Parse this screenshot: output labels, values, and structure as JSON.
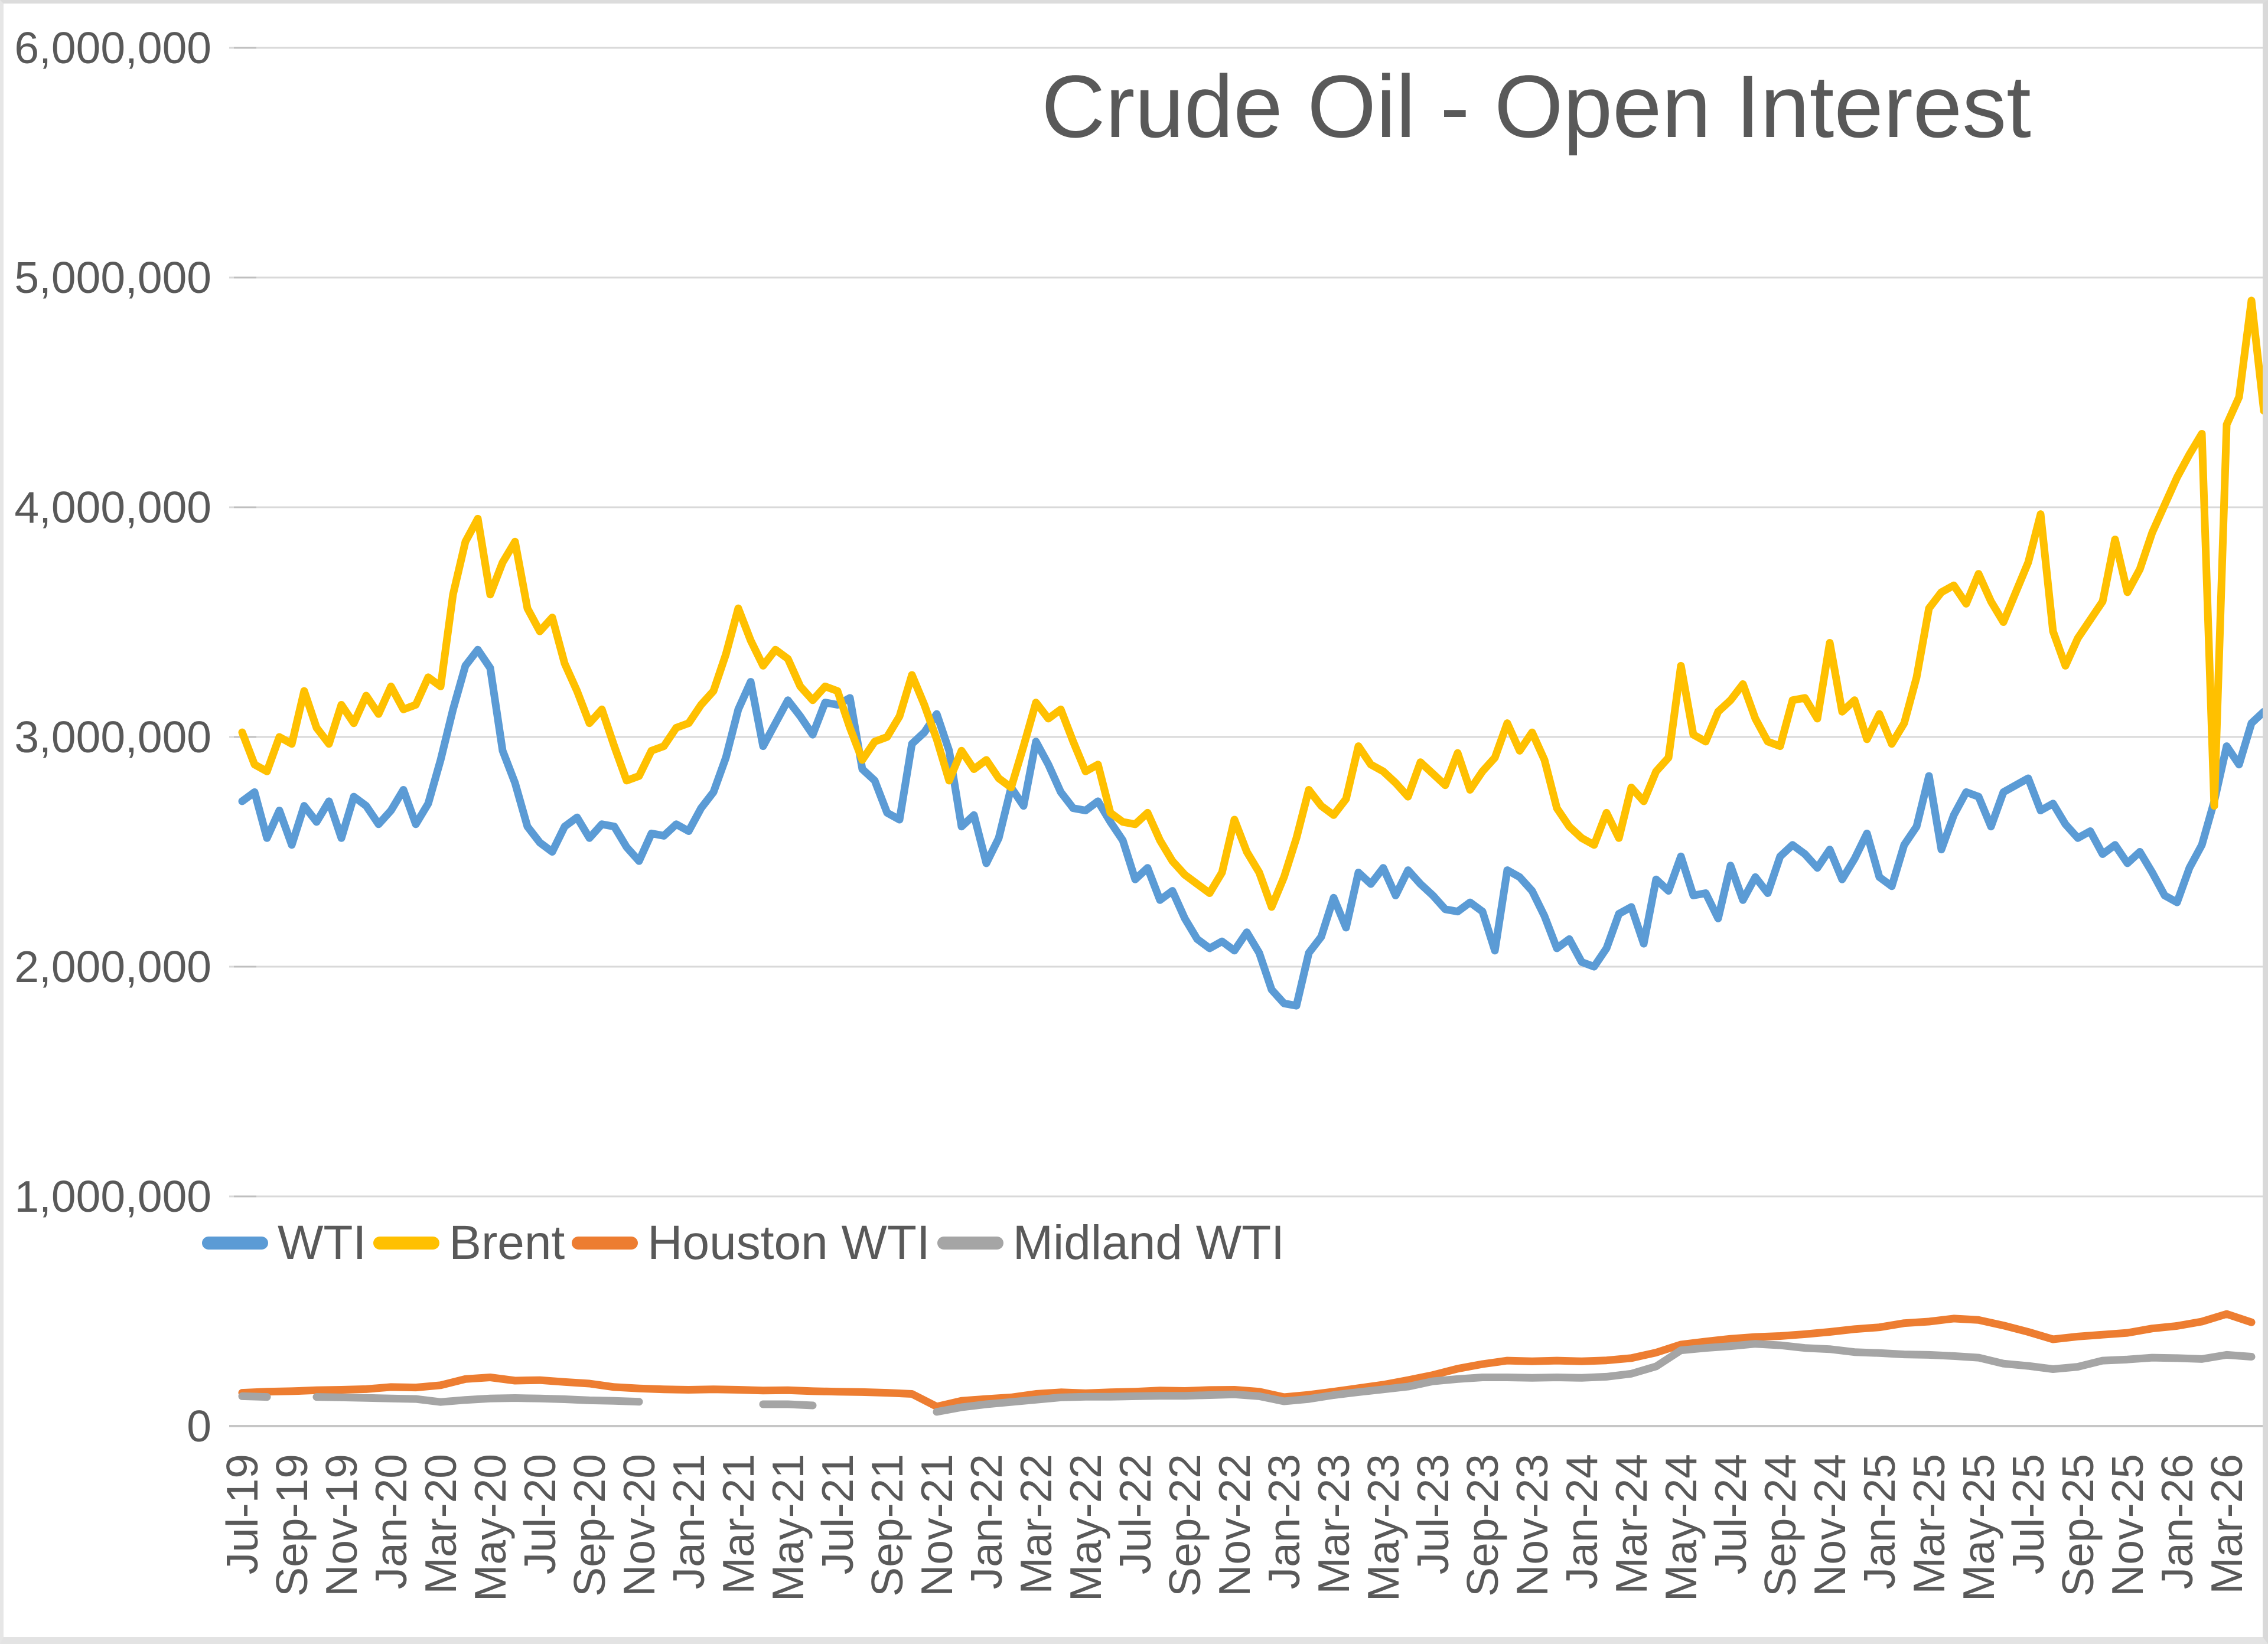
{
  "title": "Crude Oil - Open Interest",
  "colors": {
    "title_text": "#595959",
    "axis_text": "#595959",
    "gridline": "#D9D9D9",
    "axis_line": "#C6C6C6",
    "tick_mark": "#BFBFBF",
    "wti": "#5B9BD5",
    "brent": "#FFC000",
    "houston_wti": "#ED7D31",
    "midland_wti": "#A5A5A5"
  },
  "chart_data": {
    "type": "line",
    "title": "Crude Oil - Open Interest",
    "xlabel": "",
    "ylabel": "",
    "grid": true,
    "y_axis": {
      "min": 0,
      "max": 6000000,
      "tick_interval": 1000000,
      "tick_labels": [
        "6,000,000",
        "5,000,000",
        "4,000,000",
        "3,000,000",
        "2,000,000",
        "1,000,000",
        "0"
      ],
      "tick_values": [
        6000000,
        5000000,
        4000000,
        3000000,
        2000000,
        1000000,
        0
      ]
    },
    "x_axis": {
      "unit": "month",
      "start": "Jul-19",
      "end": "Apr-26",
      "label_rotation_degrees": 90,
      "tick_labels": [
        "Jul-19",
        "Sep-19",
        "Nov-19",
        "Jan-20",
        "Mar-20",
        "May-20",
        "Jul-20",
        "Sep-20",
        "Nov-20",
        "Jan-21",
        "Mar-21",
        "May-21",
        "Jul-21",
        "Sep-21",
        "Nov-21",
        "Jan-22",
        "Mar-22",
        "May-22",
        "Jul-22",
        "Sep-22",
        "Nov-22",
        "Jan-23",
        "Mar-23",
        "May-23",
        "Jul-23",
        "Sep-23",
        "Nov-23",
        "Jan-24",
        "Mar-24",
        "May-24",
        "Jul-24",
        "Sep-24",
        "Nov-24",
        "Jan-25",
        "Mar-25",
        "May-25",
        "Jul-25",
        "Sep-25",
        "Nov-25",
        "Jan-26",
        "Mar-26"
      ],
      "months": [
        "Jul-19",
        "Aug-19",
        "Sep-19",
        "Oct-19",
        "Nov-19",
        "Dec-19",
        "Jan-20",
        "Feb-20",
        "Mar-20",
        "Apr-20",
        "May-20",
        "Jun-20",
        "Jul-20",
        "Aug-20",
        "Sep-20",
        "Oct-20",
        "Nov-20",
        "Dec-20",
        "Jan-21",
        "Feb-21",
        "Mar-21",
        "Apr-21",
        "May-21",
        "Jun-21",
        "Jul-21",
        "Aug-21",
        "Sep-21",
        "Oct-21",
        "Nov-21",
        "Dec-21",
        "Jan-22",
        "Feb-22",
        "Mar-22",
        "Apr-22",
        "May-22",
        "Jun-22",
        "Jul-22",
        "Aug-22",
        "Sep-22",
        "Oct-22",
        "Nov-22",
        "Dec-22",
        "Jan-23",
        "Feb-23",
        "Mar-23",
        "Apr-23",
        "May-23",
        "Jun-23",
        "Jul-23",
        "Aug-23",
        "Sep-23",
        "Oct-23",
        "Nov-23",
        "Dec-23",
        "Jan-24",
        "Feb-24",
        "Mar-24",
        "Apr-24",
        "May-24",
        "Jun-24",
        "Jul-24",
        "Aug-24",
        "Sep-24",
        "Oct-24",
        "Nov-24",
        "Dec-24",
        "Jan-25",
        "Feb-25",
        "Mar-25",
        "Apr-25",
        "May-25",
        "Jun-25",
        "Jul-25",
        "Aug-25",
        "Sep-25",
        "Oct-25",
        "Nov-25",
        "Dec-25",
        "Jan-26",
        "Feb-26",
        "Mar-26",
        "Apr-26"
      ]
    },
    "legend": {
      "position": "inside-bottom-left",
      "entries": [
        {
          "label": "WTI",
          "color": "#5B9BD5"
        },
        {
          "label": "Brent",
          "color": "#FFC000"
        },
        {
          "label": "Houston WTI",
          "color": "#ED7D31"
        },
        {
          "label": "Midland WTI",
          "color": "#A5A5A5"
        }
      ]
    },
    "series": [
      {
        "name": "WTI",
        "color": "#5B9BD5",
        "points_per_month": 2,
        "values_millions": [
          2.72,
          2.76,
          2.56,
          2.68,
          2.53,
          2.7,
          2.63,
          2.72,
          2.56,
          2.74,
          2.7,
          2.62,
          2.68,
          2.77,
          2.62,
          2.71,
          2.9,
          3.12,
          3.31,
          3.38,
          3.3,
          2.94,
          2.8,
          2.61,
          2.54,
          2.5,
          2.61,
          2.65,
          2.56,
          2.62,
          2.61,
          2.52,
          2.46,
          2.58,
          2.57,
          2.62,
          2.59,
          2.69,
          2.76,
          2.91,
          3.12,
          3.24,
          2.96,
          3.06,
          3.16,
          3.09,
          3.01,
          3.15,
          3.14,
          3.17,
          2.86,
          2.81,
          2.67,
          2.64,
          2.97,
          3.02,
          3.1,
          2.94,
          2.61,
          2.66,
          2.45,
          2.56,
          2.78,
          2.7,
          2.98,
          2.88,
          2.76,
          2.69,
          2.68,
          2.72,
          2.63,
          2.55,
          2.38,
          2.43,
          2.29,
          2.33,
          2.21,
          2.12,
          2.08,
          2.11,
          2.07,
          2.15,
          2.06,
          1.9,
          1.84,
          1.83,
          2.06,
          2.13,
          2.3,
          2.17,
          2.41,
          2.36,
          2.43,
          2.31,
          2.42,
          2.36,
          2.31,
          2.25,
          2.24,
          2.28,
          2.24,
          2.07,
          2.42,
          2.39,
          2.33,
          2.22,
          2.08,
          2.12,
          2.02,
          2.0,
          2.08,
          2.23,
          2.26,
          2.1,
          2.38,
          2.33,
          2.48,
          2.31,
          2.32,
          2.21,
          2.44,
          2.29,
          2.39,
          2.32,
          2.48,
          2.53,
          2.49,
          2.43,
          2.51,
          2.38,
          2.47,
          2.58,
          2.39,
          2.35,
          2.53,
          2.61,
          2.83,
          2.51,
          2.66,
          2.76,
          2.74,
          2.61,
          2.76,
          2.79,
          2.82,
          2.68,
          2.71,
          2.62,
          2.56,
          2.59,
          2.49,
          2.53,
          2.45,
          2.5,
          2.41,
          2.31,
          2.28,
          2.43,
          2.53,
          2.72,
          2.96,
          2.88,
          3.06,
          3.11
        ]
      },
      {
        "name": "Brent",
        "color": "#FFC000",
        "points_per_month": 2,
        "values_millions": [
          3.02,
          2.88,
          2.85,
          3.0,
          2.97,
          3.2,
          3.04,
          2.97,
          3.14,
          3.06,
          3.18,
          3.1,
          3.22,
          3.12,
          3.14,
          3.26,
          3.22,
          3.62,
          3.85,
          3.95,
          3.62,
          3.76,
          3.85,
          3.56,
          3.46,
          3.52,
          3.32,
          3.2,
          3.06,
          3.12,
          2.96,
          2.81,
          2.83,
          2.94,
          2.96,
          3.04,
          3.06,
          3.14,
          3.2,
          3.36,
          3.56,
          3.42,
          3.31,
          3.38,
          3.34,
          3.22,
          3.16,
          3.22,
          3.2,
          3.04,
          2.9,
          2.98,
          3.0,
          3.09,
          3.27,
          3.14,
          2.99,
          2.81,
          2.94,
          2.86,
          2.9,
          2.82,
          2.78,
          2.96,
          3.15,
          3.08,
          3.12,
          2.98,
          2.85,
          2.88,
          2.67,
          2.63,
          2.62,
          2.67,
          2.55,
          2.46,
          2.4,
          2.36,
          2.32,
          2.41,
          2.64,
          2.5,
          2.41,
          2.26,
          2.39,
          2.56,
          2.77,
          2.7,
          2.66,
          2.73,
          2.96,
          2.88,
          2.85,
          2.8,
          2.74,
          2.89,
          2.84,
          2.79,
          2.93,
          2.77,
          2.85,
          2.91,
          3.06,
          2.94,
          3.02,
          2.9,
          2.69,
          2.61,
          2.56,
          2.53,
          2.67,
          2.56,
          2.78,
          2.72,
          2.85,
          2.91,
          3.31,
          3.01,
          2.98,
          3.11,
          3.16,
          3.23,
          3.08,
          2.98,
          2.96,
          3.16,
          3.17,
          3.08,
          3.41,
          3.11,
          3.16,
          2.99,
          3.1,
          2.97,
          3.06,
          3.26,
          3.56,
          3.63,
          3.66,
          3.58,
          3.71,
          3.59,
          3.5,
          3.63,
          3.76,
          3.97,
          3.46,
          3.31,
          3.43,
          3.51,
          3.59,
          3.86,
          3.63,
          3.73,
          3.89,
          4.01,
          4.13,
          4.23,
          4.32,
          2.7,
          4.36,
          4.48,
          4.9,
          4.42
        ]
      },
      {
        "name": "Houston WTI",
        "color": "#ED7D31",
        "points_per_month": 1,
        "values_millions": [
          0.145,
          0.15,
          0.152,
          0.156,
          0.158,
          0.161,
          0.17,
          0.168,
          0.178,
          0.205,
          0.212,
          0.198,
          0.2,
          0.192,
          0.185,
          0.17,
          0.164,
          0.16,
          0.158,
          0.16,
          0.158,
          0.155,
          0.156,
          0.152,
          0.15,
          0.148,
          0.145,
          0.14,
          0.085,
          0.11,
          0.118,
          0.125,
          0.14,
          0.147,
          0.143,
          0.147,
          0.15,
          0.155,
          0.153,
          0.157,
          0.158,
          0.15,
          0.126,
          0.136,
          0.15,
          0.165,
          0.18,
          0.2,
          0.222,
          0.25,
          0.27,
          0.285,
          0.282,
          0.285,
          0.282,
          0.286,
          0.296,
          0.32,
          0.355,
          0.368,
          0.38,
          0.388,
          0.392,
          0.4,
          0.41,
          0.422,
          0.43,
          0.448,
          0.455,
          0.468,
          0.462,
          0.438,
          0.41,
          0.378,
          0.39,
          0.398,
          0.406,
          0.425,
          0.436,
          0.455,
          0.488,
          0.452
        ]
      },
      {
        "name": "Midland WTI",
        "color": "#A5A5A5",
        "points_per_month": 1,
        "has_gaps": true,
        "values_millions": [
          0.13,
          0.127,
          null,
          0.127,
          0.125,
          0.123,
          0.12,
          0.118,
          0.105,
          0.114,
          0.12,
          0.122,
          0.12,
          0.117,
          0.112,
          0.11,
          0.106,
          null,
          null,
          0.092,
          null,
          0.095,
          0.095,
          0.09,
          null,
          0.085,
          null,
          null,
          0.062,
          0.082,
          0.095,
          0.105,
          0.115,
          0.125,
          0.128,
          0.128,
          0.13,
          0.132,
          0.132,
          0.135,
          0.138,
          0.13,
          0.108,
          0.118,
          0.135,
          0.148,
          0.16,
          0.172,
          0.195,
          0.205,
          0.212,
          0.212,
          0.21,
          0.212,
          0.21,
          0.215,
          0.228,
          0.26,
          0.33,
          0.34,
          0.348,
          0.358,
          0.352,
          0.34,
          0.335,
          0.322,
          0.318,
          0.312,
          0.31,
          0.305,
          0.298,
          0.272,
          0.262,
          0.248,
          0.258,
          0.285,
          0.29,
          0.298,
          0.296,
          0.292,
          0.31,
          0.302
        ]
      }
    ]
  }
}
